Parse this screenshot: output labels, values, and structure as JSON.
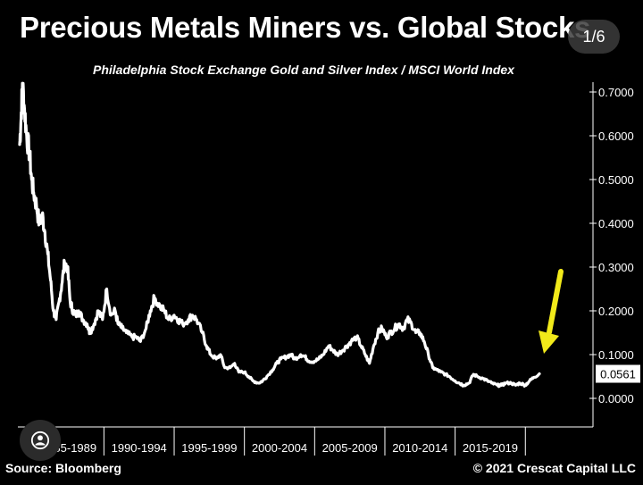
{
  "header": {
    "title": "Precious Metals Miners vs. Global Stocks",
    "subtitle": "Philadelphia Stock Exchange Gold and Silver Index / MSCI World Index"
  },
  "viewer": {
    "page_counter": "1/6",
    "avatar_icon": "user-icon"
  },
  "footer": {
    "source": "Source: Bloomberg",
    "copyright": "© 2021 Crescat Capital LLC"
  },
  "colors": {
    "background": "#000000",
    "line": "#ffffff",
    "arrow": "#f2ea1a"
  },
  "chart_data": {
    "type": "line",
    "title": "Precious Metals Miners vs. Global Stocks",
    "subtitle": "Philadelphia Stock Exchange Gold and Silver Index / MSCI World Index",
    "xlabel": "",
    "ylabel": "",
    "x_range": [
      1984.0,
      2021.0
    ],
    "ylim": [
      -0.02,
      0.72
    ],
    "y_ticks": [
      "0.0000",
      "0.1000",
      "0.2000",
      "0.3000",
      "0.4000",
      "0.5000",
      "0.6000",
      "0.7000"
    ],
    "y_tick_values": [
      0.0,
      0.1,
      0.2,
      0.3,
      0.4,
      0.5,
      0.6,
      0.7
    ],
    "x_period_labels": [
      "1985-1989",
      "1990-1994",
      "1995-1999",
      "2000-2004",
      "2005-2009",
      "2010-2014",
      "2015-2019"
    ],
    "x_period_starts": [
      1985,
      1990,
      1995,
      2000,
      2005,
      2010,
      2015
    ],
    "period_length": 5,
    "last_value_label": "0.0561",
    "last_value": 0.0561,
    "grid": false,
    "axis_side": "right",
    "annotation": "yellow arrow pointing at latest value",
    "series": [
      {
        "x": [
          1984.0,
          1984.1,
          1984.2,
          1984.35,
          1984.5,
          1984.7,
          1984.85,
          1985.0,
          1985.2,
          1985.4,
          1985.6,
          1985.8,
          1986.0,
          1986.2,
          1986.4,
          1986.6,
          1986.8,
          1987.0,
          1987.2,
          1987.4,
          1987.6,
          1987.8,
          1988.0,
          1988.2,
          1988.5,
          1988.8,
          1989.0,
          1989.3,
          1989.6,
          1989.9,
          1990.2,
          1990.5,
          1990.8,
          1991.0,
          1991.3,
          1991.6,
          1992.0,
          1992.3,
          1992.6,
          1993.0,
          1993.3,
          1993.6,
          1994.0,
          1994.3,
          1994.6,
          1995.0,
          1995.3,
          1995.6,
          1996.0,
          1996.3,
          1996.6,
          1997.0,
          1997.3,
          1997.6,
          1998.0,
          1998.3,
          1998.6,
          1999.0,
          1999.3,
          1999.6,
          2000.0,
          2000.3,
          2000.6,
          2001.0,
          2001.3,
          2001.6,
          2002.0,
          2002.3,
          2002.6,
          2003.0,
          2003.3,
          2003.6,
          2004.0,
          2004.3,
          2004.6,
          2005.0,
          2005.3,
          2005.6,
          2006.0,
          2006.3,
          2006.6,
          2007.0,
          2007.3,
          2007.6,
          2008.0,
          2008.3,
          2008.6,
          2008.9,
          2009.2,
          2009.5,
          2009.8,
          2010.1,
          2010.4,
          2010.7,
          2011.0,
          2011.3,
          2011.6,
          2011.9,
          2012.2,
          2012.5,
          2012.8,
          2013.1,
          2013.4,
          2013.7,
          2014.0,
          2014.3,
          2014.6,
          2015.0,
          2015.3,
          2015.6,
          2016.0,
          2016.3,
          2016.6,
          2017.0,
          2017.3,
          2017.6,
          2018.0,
          2018.3,
          2018.6,
          2019.0,
          2019.3,
          2019.6,
          2020.0,
          2020.3,
          2020.6,
          2021.0
        ],
        "y": [
          0.58,
          0.64,
          0.72,
          0.66,
          0.6,
          0.56,
          0.5,
          0.47,
          0.44,
          0.4,
          0.42,
          0.38,
          0.33,
          0.27,
          0.2,
          0.18,
          0.22,
          0.26,
          0.31,
          0.3,
          0.22,
          0.2,
          0.19,
          0.2,
          0.18,
          0.17,
          0.15,
          0.17,
          0.2,
          0.18,
          0.25,
          0.19,
          0.2,
          0.17,
          0.16,
          0.15,
          0.14,
          0.14,
          0.13,
          0.16,
          0.2,
          0.23,
          0.21,
          0.2,
          0.18,
          0.19,
          0.18,
          0.17,
          0.18,
          0.19,
          0.18,
          0.15,
          0.12,
          0.1,
          0.09,
          0.1,
          0.07,
          0.07,
          0.08,
          0.06,
          0.06,
          0.05,
          0.04,
          0.035,
          0.04,
          0.05,
          0.065,
          0.08,
          0.09,
          0.095,
          0.1,
          0.09,
          0.1,
          0.095,
          0.085,
          0.085,
          0.09,
          0.1,
          0.12,
          0.11,
          0.1,
          0.11,
          0.12,
          0.13,
          0.14,
          0.12,
          0.1,
          0.08,
          0.12,
          0.15,
          0.16,
          0.14,
          0.15,
          0.16,
          0.17,
          0.16,
          0.18,
          0.17,
          0.15,
          0.15,
          0.13,
          0.1,
          0.07,
          0.065,
          0.06,
          0.055,
          0.05,
          0.04,
          0.035,
          0.03,
          0.035,
          0.055,
          0.05,
          0.045,
          0.04,
          0.035,
          0.03,
          0.03,
          0.035,
          0.035,
          0.03,
          0.035,
          0.03,
          0.04,
          0.048,
          0.0561
        ]
      }
    ]
  }
}
